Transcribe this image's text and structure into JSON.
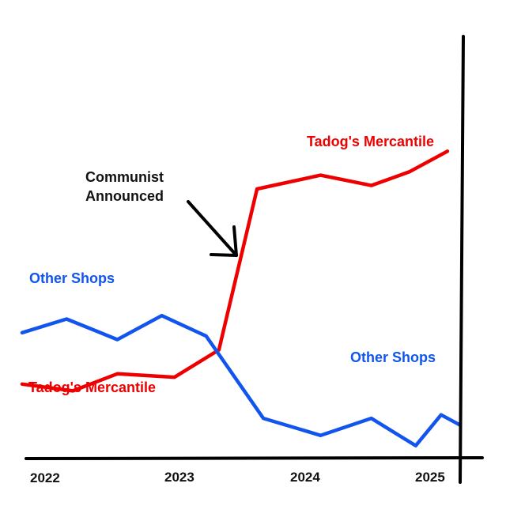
{
  "chart_data": {
    "type": "line",
    "title": "",
    "xlabel": "",
    "ylabel": "",
    "x_ticks": [
      "2022",
      "2023",
      "2024",
      "2025"
    ],
    "series": [
      {
        "name": "Tadog's Mercantile",
        "color": "#ee0000",
        "points": [
          [
            2021.85,
            3.1
          ],
          [
            2022.25,
            2.9
          ],
          [
            2022.6,
            3.4
          ],
          [
            2023.05,
            3.3
          ],
          [
            2023.4,
            4.1
          ],
          [
            2023.7,
            8.8
          ],
          [
            2024.2,
            9.2
          ],
          [
            2024.6,
            8.9
          ],
          [
            2024.9,
            9.3
          ],
          [
            2025.2,
            9.9
          ]
        ],
        "labels": [
          "Tadog's Mercantile",
          "Tadog's Mercantile"
        ]
      },
      {
        "name": "Other Shops",
        "color": "#1155ee",
        "points": [
          [
            2021.85,
            4.6
          ],
          [
            2022.2,
            5.0
          ],
          [
            2022.6,
            4.4
          ],
          [
            2022.95,
            5.1
          ],
          [
            2023.3,
            4.5
          ],
          [
            2023.75,
            2.1
          ],
          [
            2024.2,
            1.6
          ],
          [
            2024.6,
            2.1
          ],
          [
            2024.95,
            1.3
          ],
          [
            2025.15,
            2.2
          ],
          [
            2025.3,
            1.9
          ]
        ],
        "labels": [
          "Other Shops",
          "Other Shops"
        ]
      }
    ],
    "annotations": [
      {
        "text_lines": [
          "Communist",
          "Announced"
        ],
        "points_to_x": 2023.4
      }
    ],
    "grid": false,
    "legend": "none"
  }
}
